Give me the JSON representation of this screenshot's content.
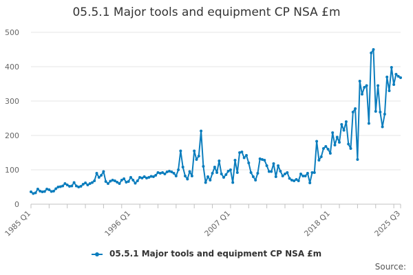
{
  "chart_data": {
    "type": "line",
    "title": "05.5.1 Major tools and equipment CP NSA £m",
    "xlabel": "",
    "ylabel": "",
    "ylim": [
      0,
      500
    ],
    "yticks": [
      0,
      100,
      200,
      300,
      400,
      500
    ],
    "xtick_labels": [
      "1985 Q1",
      "1996 Q1",
      "2007 Q1",
      "2018 Q1",
      "2025 Q3"
    ],
    "grid": true,
    "legend": "bottom",
    "color": "#0b7dbd",
    "series": [
      {
        "name": "05.5.1 Major tools and equipment CP NSA £m",
        "x_start": "1985 Q1",
        "x_end": "2025 Q3",
        "values": [
          36,
          31,
          33,
          44,
          38,
          36,
          37,
          44,
          42,
          37,
          38,
          45,
          50,
          51,
          53,
          60,
          56,
          52,
          53,
          63,
          53,
          50,
          52,
          58,
          62,
          56,
          60,
          63,
          68,
          90,
          78,
          84,
          95,
          66,
          60,
          67,
          70,
          68,
          64,
          60,
          70,
          74,
          64,
          66,
          78,
          70,
          61,
          68,
          78,
          76,
          80,
          76,
          78,
          81,
          80,
          84,
          92,
          90,
          92,
          88,
          94,
          96,
          94,
          90,
          82,
          100,
          155,
          108,
          82,
          73,
          95,
          82,
          155,
          130,
          140,
          213,
          110,
          63,
          80,
          70,
          90,
          108,
          92,
          126,
          88,
          78,
          86,
          96,
          100,
          63,
          128,
          92,
          150,
          152,
          135,
          142,
          120,
          92,
          80,
          70,
          90,
          132,
          130,
          128,
          112,
          95,
          95,
          118,
          80,
          112,
          96,
          82,
          88,
          92,
          75,
          70,
          68,
          72,
          68,
          88,
          82,
          82,
          90,
          62,
          92,
          92,
          183,
          128,
          138,
          162,
          168,
          160,
          148,
          208,
          172,
          195,
          180,
          232,
          215,
          240,
          175,
          162,
          268,
          278,
          130,
          358,
          320,
          340,
          345,
          235,
          440,
          450,
          270,
          345,
          268,
          225,
          262,
          370,
          330,
          398,
          348,
          378,
          372,
          368
        ]
      }
    ]
  },
  "legend": {
    "label": "05.5.1 Major tools and equipment CP NSA £m"
  },
  "source_label": "Source:"
}
